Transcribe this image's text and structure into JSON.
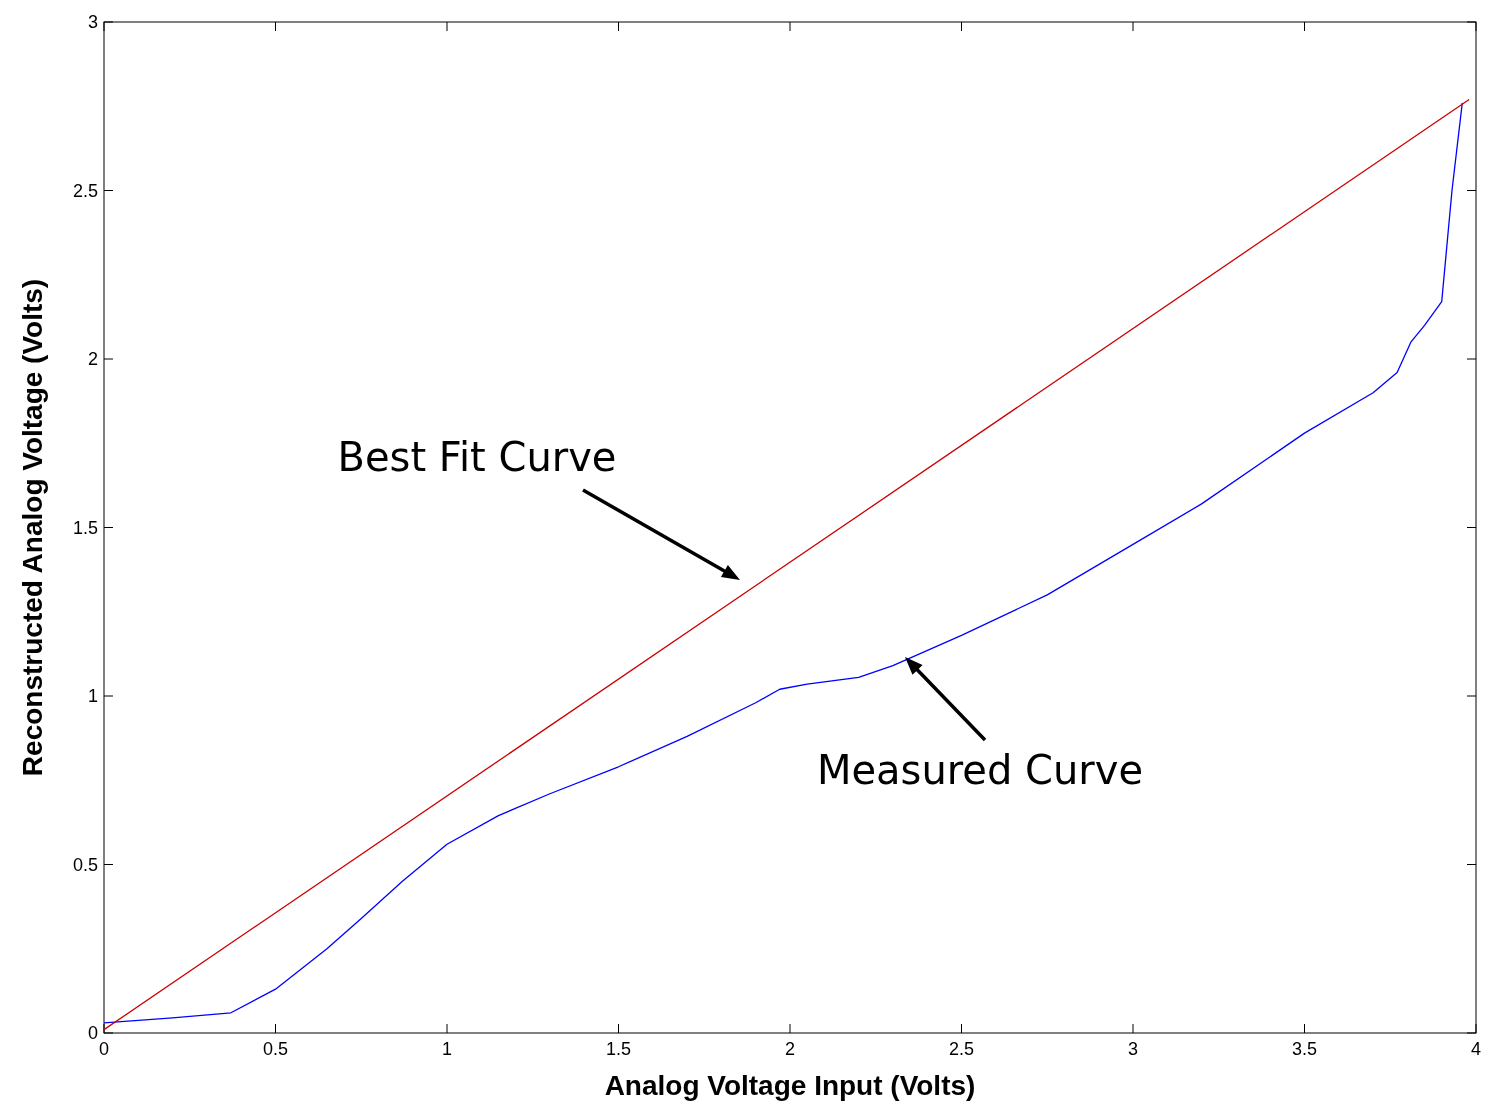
{
  "chart_data": {
    "type": "line",
    "xlabel": "Analog Voltage Input (Volts)",
    "ylabel": "Reconstructed Analog Voltage (Volts)",
    "xlim": [
      0,
      4
    ],
    "ylim": [
      0,
      3
    ],
    "xticks": [
      0,
      0.5,
      1,
      1.5,
      2,
      2.5,
      3,
      3.5,
      4
    ],
    "yticks": [
      0,
      0.5,
      1,
      1.5,
      2,
      2.5,
      3
    ],
    "grid": false,
    "series": [
      {
        "color": "#0000ff",
        "x": [
          0,
          0.2,
          0.37,
          0.5,
          0.65,
          0.75,
          0.87,
          1.0,
          1.15,
          1.3,
          1.5,
          1.7,
          1.9,
          1.97,
          2.05,
          2.2,
          2.3,
          2.5,
          2.75,
          3.0,
          3.2,
          3.5,
          3.7,
          3.77,
          3.81,
          3.85,
          3.9,
          3.93,
          3.96
        ],
        "values": [
          0.03,
          0.045,
          0.06,
          0.13,
          0.25,
          0.34,
          0.45,
          0.56,
          0.645,
          0.71,
          0.79,
          0.88,
          0.98,
          1.02,
          1.035,
          1.055,
          1.09,
          1.18,
          1.3,
          1.45,
          1.57,
          1.78,
          1.9,
          1.96,
          2.05,
          2.1,
          2.17,
          2.5,
          2.76
        ]
      },
      {
        "color": "#cc0000",
        "x": [
          0,
          3.98
        ],
        "values": [
          0.01,
          2.77
        ]
      }
    ],
    "annotations": [
      "Best Fit Curve",
      "Measured Curve"
    ]
  }
}
